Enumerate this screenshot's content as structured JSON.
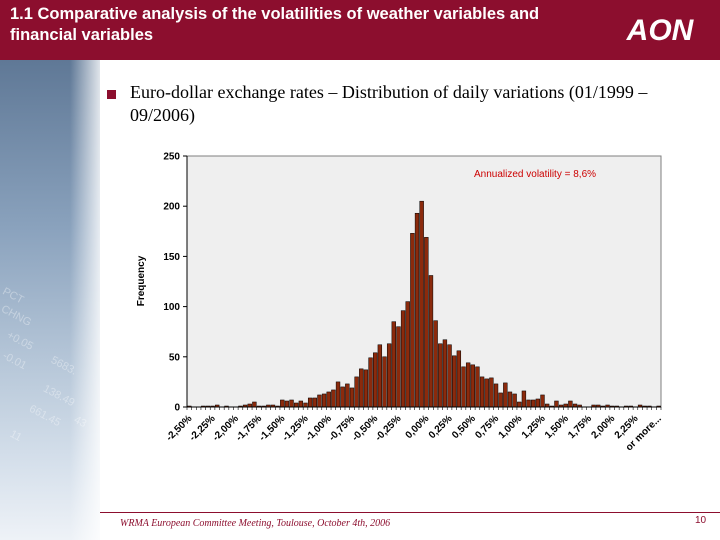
{
  "slide": {
    "title": "1.1 Comparative analysis of the volatilities of weather variables and financial variables",
    "logo_text": "AON",
    "bullet": "Euro-dollar exchange rates – Distribution of daily variations (01/1999 – 09/2006)",
    "footer": "WRMA European Committee Meeting, Toulouse, October 4th,  2006",
    "page_number": "10",
    "sidebar_numbers": [
      "PCT",
      "CHNG",
      "+0.05",
      "-0.01",
      "5683.",
      "138.49",
      "661.45",
      "43",
      "11"
    ],
    "colors": {
      "header": "#8c0e2e",
      "bar_fill": "#8b2a0c",
      "annotation": "#cc0000",
      "plot_bg": "#efefef"
    }
  },
  "chart_data": {
    "type": "bar",
    "title": "",
    "xlabel": "",
    "ylabel": "Frequency",
    "ylim": [
      0,
      250
    ],
    "yticks": [
      "0",
      "50",
      "100",
      "150",
      "200",
      "250"
    ],
    "grid": false,
    "legend": "none",
    "annotation": "Annualized volatility = 8,6%",
    "tick_labels": [
      "-2,50%",
      "-2,25%",
      "-2,00%",
      "-1,75%",
      "-1,50%",
      "-1,25%",
      "-1,00%",
      "-0,75%",
      "-0,50%",
      "-0,25%",
      "0,00%",
      "0,25%",
      "0,50%",
      "0,75%",
      "1,00%",
      "1,25%",
      "1,50%",
      "1,75%",
      "2,00%",
      "2,25%",
      "or more..."
    ],
    "values": [
      1,
      0,
      0,
      1,
      1,
      1,
      2,
      0,
      1,
      0,
      0,
      1,
      2,
      3,
      5,
      1,
      1,
      2,
      2,
      1,
      7,
      6,
      7,
      4,
      6,
      4,
      9,
      9,
      12,
      13,
      15,
      17,
      25,
      20,
      23,
      19,
      30,
      38,
      37,
      49,
      54,
      62,
      50,
      63,
      85,
      80,
      96,
      105,
      173,
      193,
      205,
      169,
      131,
      86,
      63,
      67,
      62,
      51,
      56,
      40,
      44,
      42,
      40,
      30,
      28,
      29,
      23,
      14,
      24,
      15,
      13,
      5,
      16,
      7,
      7,
      8,
      12,
      3,
      1,
      6,
      2,
      3,
      6,
      3,
      2,
      0,
      0,
      2,
      2,
      1,
      2,
      1,
      1,
      0,
      1,
      1,
      0,
      2,
      1,
      1,
      0,
      1
    ]
  }
}
